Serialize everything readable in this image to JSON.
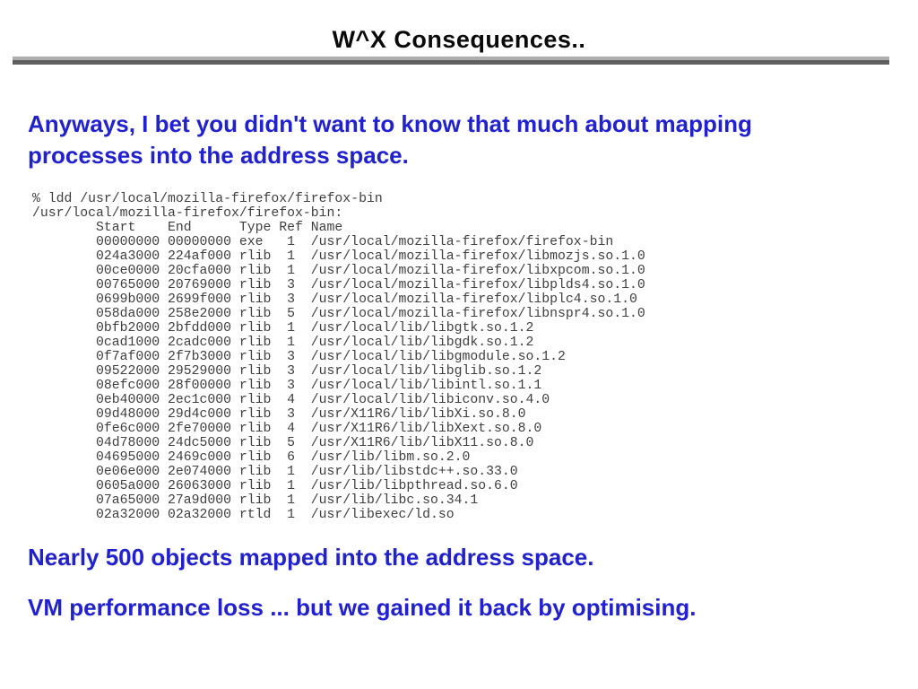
{
  "slide_title": "W^X Consequences..",
  "intro_paragraph": {
    "lines": [
      "Anyways, I bet you didn't want to know that much about mapping",
      "processes into the address space."
    ]
  },
  "terminal": {
    "command_line": "% ldd /usr/local/mozilla-firefox/firefox-bin",
    "binary_heading": "/usr/local/mozilla-firefox/firefox-bin:",
    "columns": [
      "Start",
      "End",
      "Type",
      "Ref",
      "Name"
    ],
    "rows": [
      {
        "start": "00000000",
        "end": "00000000",
        "type": "exe",
        "ref": "1",
        "name": "/usr/local/mozilla-firefox/firefox-bin"
      },
      {
        "start": "024a3000",
        "end": "224af000",
        "type": "rlib",
        "ref": "1",
        "name": "/usr/local/mozilla-firefox/libmozjs.so.1.0"
      },
      {
        "start": "00ce0000",
        "end": "20cfa000",
        "type": "rlib",
        "ref": "1",
        "name": "/usr/local/mozilla-firefox/libxpcom.so.1.0"
      },
      {
        "start": "00765000",
        "end": "20769000",
        "type": "rlib",
        "ref": "3",
        "name": "/usr/local/mozilla-firefox/libplds4.so.1.0"
      },
      {
        "start": "0699b000",
        "end": "2699f000",
        "type": "rlib",
        "ref": "3",
        "name": "/usr/local/mozilla-firefox/libplc4.so.1.0"
      },
      {
        "start": "058da000",
        "end": "258e2000",
        "type": "rlib",
        "ref": "5",
        "name": "/usr/local/mozilla-firefox/libnspr4.so.1.0"
      },
      {
        "start": "0bfb2000",
        "end": "2bfdd000",
        "type": "rlib",
        "ref": "1",
        "name": "/usr/local/lib/libgtk.so.1.2"
      },
      {
        "start": "0cad1000",
        "end": "2cadc000",
        "type": "rlib",
        "ref": "1",
        "name": "/usr/local/lib/libgdk.so.1.2"
      },
      {
        "start": "0f7af000",
        "end": "2f7b3000",
        "type": "rlib",
        "ref": "3",
        "name": "/usr/local/lib/libgmodule.so.1.2"
      },
      {
        "start": "09522000",
        "end": "29529000",
        "type": "rlib",
        "ref": "3",
        "name": "/usr/local/lib/libglib.so.1.2"
      },
      {
        "start": "08efc000",
        "end": "28f00000",
        "type": "rlib",
        "ref": "3",
        "name": "/usr/local/lib/libintl.so.1.1"
      },
      {
        "start": "0eb40000",
        "end": "2ec1c000",
        "type": "rlib",
        "ref": "4",
        "name": "/usr/local/lib/libiconv.so.4.0"
      },
      {
        "start": "09d48000",
        "end": "29d4c000",
        "type": "rlib",
        "ref": "3",
        "name": "/usr/X11R6/lib/libXi.so.8.0"
      },
      {
        "start": "0fe6c000",
        "end": "2fe70000",
        "type": "rlib",
        "ref": "4",
        "name": "/usr/X11R6/lib/libXext.so.8.0"
      },
      {
        "start": "04d78000",
        "end": "24dc5000",
        "type": "rlib",
        "ref": "5",
        "name": "/usr/X11R6/lib/libX11.so.8.0"
      },
      {
        "start": "04695000",
        "end": "2469c000",
        "type": "rlib",
        "ref": "6",
        "name": "/usr/lib/libm.so.2.0"
      },
      {
        "start": "0e06e000",
        "end": "2e074000",
        "type": "rlib",
        "ref": "1",
        "name": "/usr/lib/libstdc++.so.33.0"
      },
      {
        "start": "0605a000",
        "end": "26063000",
        "type": "rlib",
        "ref": "1",
        "name": "/usr/lib/libpthread.so.6.0"
      },
      {
        "start": "07a65000",
        "end": "27a9d000",
        "type": "rlib",
        "ref": "1",
        "name": "/usr/lib/libc.so.34.1"
      },
      {
        "start": "02a32000",
        "end": "02a32000",
        "type": "rtld",
        "ref": "1",
        "name": "/usr/libexec/ld.so"
      }
    ]
  },
  "conclusion_lines": [
    "Nearly 500 objects mapped into the address space.",
    "VM performance loss ... but we gained it back by optimising."
  ],
  "colors": {
    "accent_text": "#2121cd",
    "title_text": "#0a0a0a",
    "terminal_text": "#3f3f3f",
    "rule_light": "#aeaeae",
    "rule_dark": "#5f5f5f"
  }
}
